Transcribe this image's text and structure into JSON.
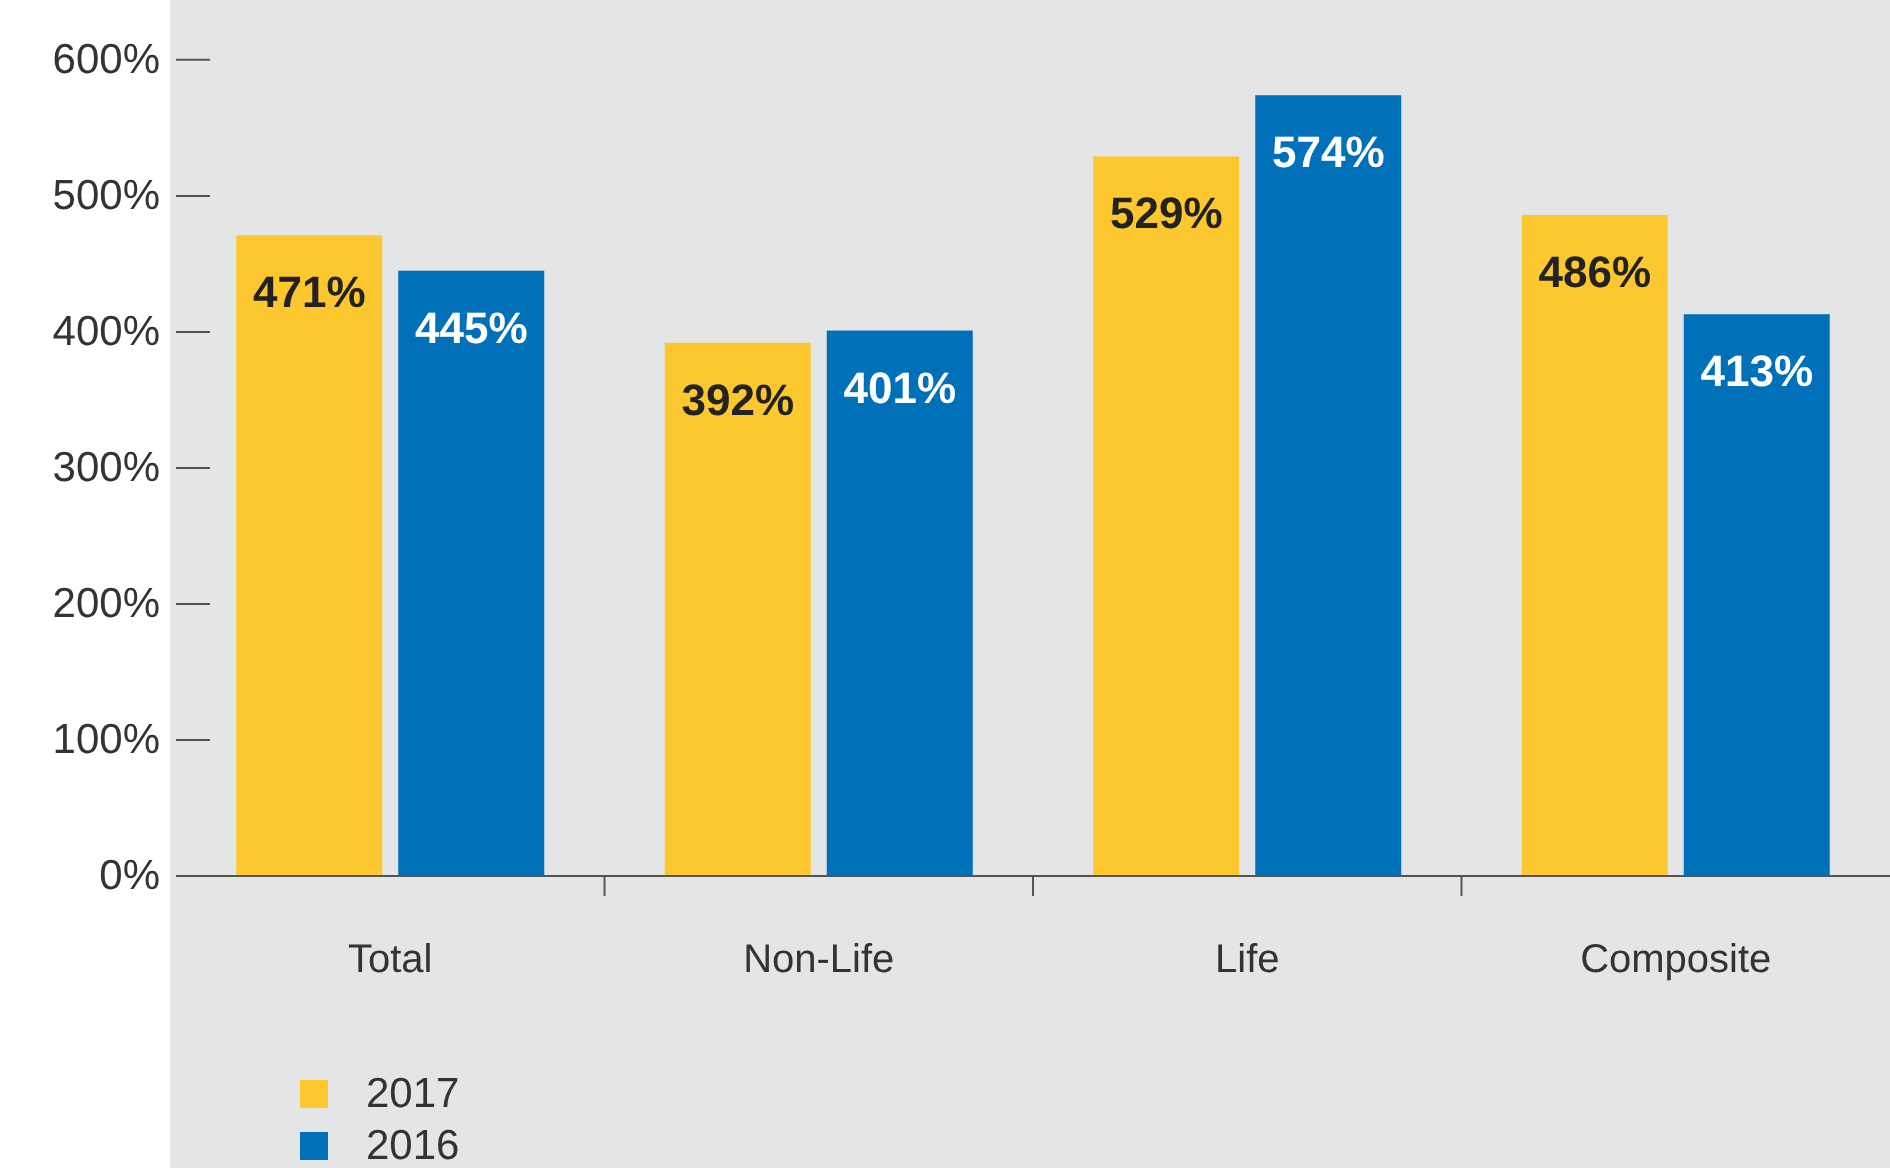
{
  "chart_data": {
    "type": "bar",
    "categories": [
      "Total",
      "Non-Life",
      "Life",
      "Composite"
    ],
    "series": [
      {
        "name": "2017",
        "color": "#fdc82f",
        "values": [
          471,
          392,
          529,
          486
        ]
      },
      {
        "name": "2016",
        "color": "#0070b9",
        "values": [
          445,
          401,
          574,
          413
        ]
      }
    ],
    "ylim": [
      0,
      644
    ],
    "yticks": [
      {
        "value": 0,
        "label": "0%"
      },
      {
        "value": 100,
        "label": "100%"
      },
      {
        "value": 200,
        "label": "200%"
      },
      {
        "value": 300,
        "label": "300%"
      },
      {
        "value": 400,
        "label": "400%"
      },
      {
        "value": 500,
        "label": "500%"
      },
      {
        "value": 600,
        "label": "600%"
      }
    ],
    "value_labels": [
      [
        "471%",
        "392%",
        "529%",
        "486%"
      ],
      [
        "445%",
        "401%",
        "574%",
        "413%"
      ]
    ],
    "legend": "bottom left",
    "grid": false
  }
}
